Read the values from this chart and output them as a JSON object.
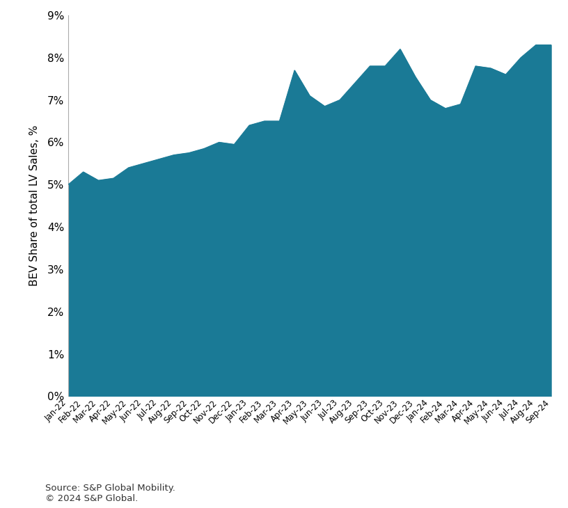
{
  "labels": [
    "Jan-22",
    "Feb-22",
    "Mar-22",
    "Apr-22",
    "May-22",
    "Jun-22",
    "Jul-22",
    "Aug-22",
    "Sep-22",
    "Oct-22",
    "Nov-22",
    "Dec-22",
    "Jan-23",
    "Feb-23",
    "Mar-23",
    "Apr-23",
    "May-23",
    "Jun-23",
    "Jul-23",
    "Aug-23",
    "Sep-23",
    "Oct-23",
    "Nov-23",
    "Dec-23",
    "Jan-24",
    "Feb-24",
    "Mar-24",
    "Apr-24",
    "May-24",
    "Jun-24",
    "Jul-24",
    "Aug-24",
    "Sep-24"
  ],
  "values": [
    5.0,
    5.3,
    5.1,
    5.15,
    5.4,
    5.5,
    5.6,
    5.7,
    5.75,
    5.85,
    6.0,
    5.95,
    6.4,
    6.5,
    6.5,
    7.7,
    7.1,
    6.85,
    7.0,
    7.4,
    7.8,
    7.8,
    8.2,
    7.55,
    7.0,
    6.8,
    6.9,
    7.8,
    7.75,
    7.6,
    8.0,
    8.3,
    8.3
  ],
  "fill_color": "#1a7a96",
  "line_color": "#1a7a96",
  "ylabel": "BEV Share of total LV Sales, %",
  "ylim": [
    0,
    9
  ],
  "yticks": [
    0,
    1,
    2,
    3,
    4,
    5,
    6,
    7,
    8,
    9
  ],
  "ytick_labels": [
    "0%",
    "1%",
    "2%",
    "3%",
    "4%",
    "5%",
    "6%",
    "7%",
    "8%",
    "9%"
  ],
  "source_text": "Source: S&P Global Mobility.\n© 2024 S&P Global.",
  "background_color": "#ffffff"
}
